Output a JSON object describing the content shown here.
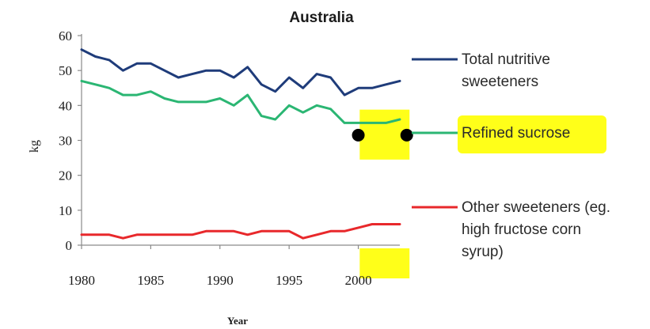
{
  "chart_data": {
    "type": "line",
    "title": "Australia",
    "xlabel": "Year",
    "ylabel": "kg",
    "xlim": [
      1980,
      2003
    ],
    "ylim": [
      0,
      60
    ],
    "yticks": [
      0,
      10,
      20,
      30,
      40,
      50,
      60
    ],
    "xticks": [
      1980,
      1985,
      1990,
      1995,
      2000
    ],
    "grid": false,
    "legend_position": "right",
    "x": [
      1980,
      1981,
      1982,
      1983,
      1984,
      1985,
      1986,
      1987,
      1988,
      1989,
      1990,
      1991,
      1992,
      1993,
      1994,
      1995,
      1996,
      1997,
      1998,
      1999,
      2000,
      2001,
      2002,
      2003
    ],
    "series": [
      {
        "name": "Total nutritive sweeteners",
        "legend_lines": [
          "Total nutritive",
          "sweeteners"
        ],
        "color": "#1f3c7a",
        "values": [
          56,
          54,
          53,
          50,
          52,
          52,
          50,
          48,
          49,
          50,
          50,
          48,
          51,
          46,
          44,
          48,
          45,
          49,
          48,
          43,
          45,
          45,
          46,
          47
        ]
      },
      {
        "name": "Refined sucrose",
        "legend_lines": [
          "Refined sucrose"
        ],
        "color": "#2bb673",
        "values": [
          47,
          46,
          45,
          43,
          43,
          44,
          42,
          41,
          41,
          41,
          42,
          40,
          43,
          37,
          36,
          40,
          38,
          40,
          39,
          35,
          35,
          35,
          35,
          36
        ]
      },
      {
        "name": "Other sweeteners (eg. high fructose corn syrup)",
        "legend_lines": [
          "Other sweeteners (eg.",
          "high fructose corn",
          "syrup)"
        ],
        "color": "#e8282b",
        "values": [
          3,
          3,
          3,
          2,
          3,
          3,
          3,
          3,
          3,
          4,
          4,
          4,
          3,
          4,
          4,
          4,
          2,
          3,
          4,
          4,
          5,
          6,
          6,
          6
        ]
      }
    ],
    "annotations": {
      "highlight_color": "#ffff00",
      "dot_color": "#000000"
    }
  }
}
